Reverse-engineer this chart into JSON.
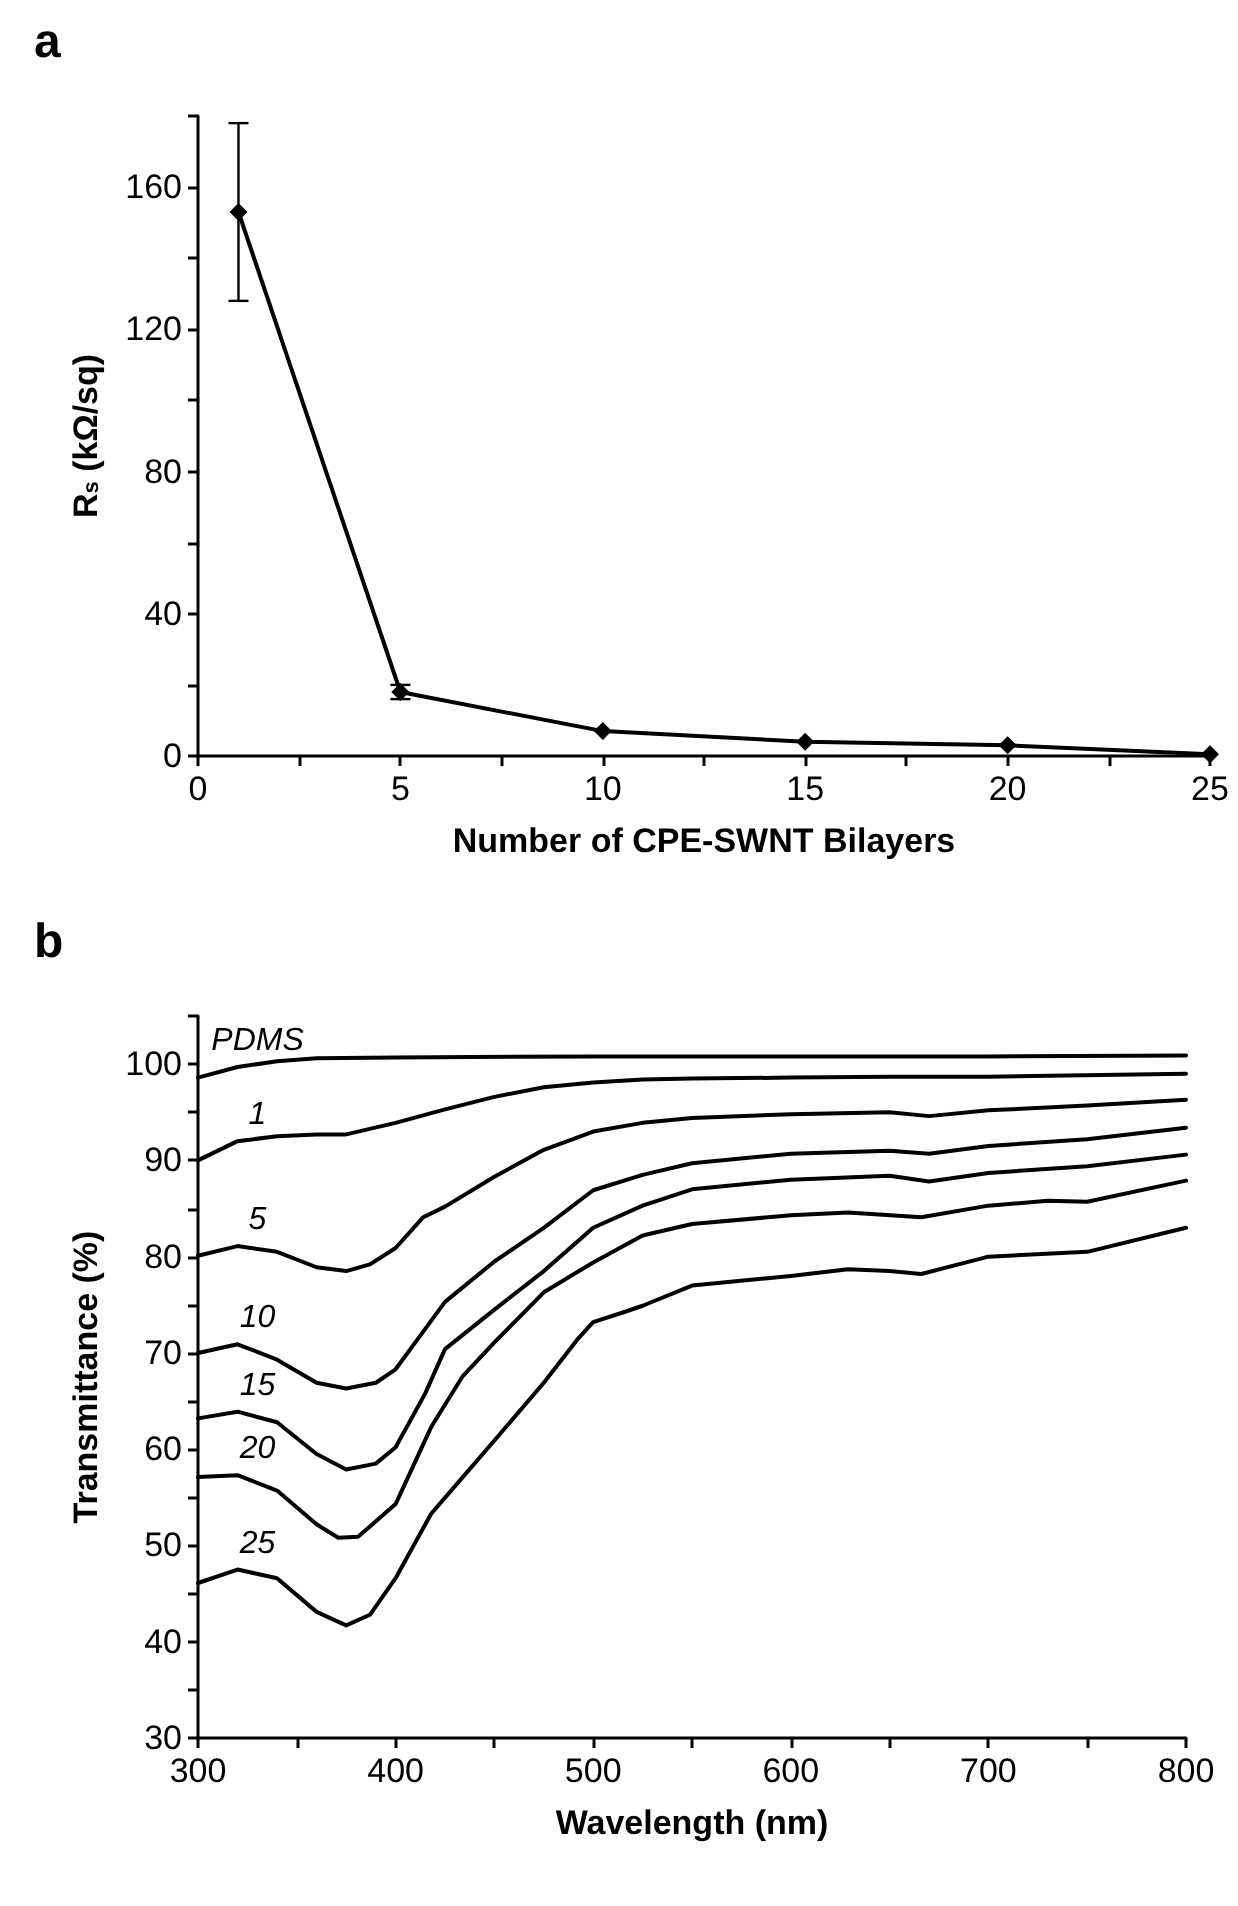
{
  "chart_data": [
    {
      "type": "line",
      "title": "a",
      "xlabel": "Number of CPE-SWNT Bilayers",
      "ylabel": "R$_{s}$ (kΩ/sq)",
      "x": [
        1,
        5,
        10,
        15,
        20,
        25
      ],
      "series": [
        {
          "color": "#000000",
          "values": [
            153,
            18,
            7,
            4,
            3,
            0.5
          ],
          "errors": [
            25,
            2,
            null,
            null,
            null,
            null
          ]
        }
      ],
      "xlim": [
        0,
        25
      ],
      "xticks": [
        0,
        {
          "value": 2.5,
          "label": null
        },
        5,
        {
          "value": 7.5,
          "label": null
        },
        10,
        {
          "value": 12.5,
          "label": null
        },
        15,
        {
          "value": 17.5,
          "label": null
        },
        20,
        {
          "value": 22.5,
          "label": null
        },
        25
      ],
      "ylim": [
        0,
        180
      ],
      "yticks": [
        0,
        {
          "value": 20,
          "label": null
        },
        40,
        {
          "value": 60,
          "label": null
        },
        80,
        {
          "value": 100,
          "label": null
        },
        120,
        {
          "value": 140,
          "label": null
        },
        160,
        {
          "value": 180,
          "label": null
        }
      ],
      "marker": "diamond",
      "line_style": "solid",
      "grid": false,
      "legend": false
    },
    {
      "type": "line",
      "title": "b",
      "xlabel": "Wavelength (nm)",
      "ylabel": "Transmittance (%)",
      "series": [
        {
          "name": "PDMS",
          "color": "#000000",
          "x": [
            300,
            320,
            340,
            360,
            400,
            500,
            600,
            700,
            800
          ],
          "values": [
            98.6,
            99.7,
            100.3,
            100.6,
            100.7,
            100.8,
            100.8,
            100.8,
            100.9
          ]
        },
        {
          "name": "1",
          "color": "#000000",
          "x": [
            300,
            320,
            340,
            360,
            375,
            400,
            425,
            450,
            475,
            500,
            525,
            550,
            600,
            650,
            700,
            800
          ],
          "values": [
            90.0,
            92.0,
            92.5,
            92.7,
            92.7,
            93.9,
            95.3,
            96.6,
            97.6,
            98.1,
            98.4,
            98.5,
            98.6,
            98.7,
            98.7,
            99.0
          ]
        },
        {
          "name": "5",
          "color": "#000000",
          "x": [
            300,
            320,
            340,
            360,
            375,
            387,
            400,
            414,
            425,
            450,
            475,
            500,
            525,
            550,
            600,
            650,
            670,
            700,
            750,
            800
          ],
          "values": [
            80.1,
            81.1,
            80.5,
            78.9,
            78.5,
            79.2,
            80.9,
            84.1,
            85.2,
            88.3,
            91.1,
            93.0,
            93.9,
            94.4,
            94.8,
            95.0,
            94.6,
            95.2,
            95.7,
            96.3
          ]
        },
        {
          "name": "10",
          "color": "#000000",
          "x": [
            300,
            320,
            340,
            360,
            375,
            390,
            400,
            415,
            425,
            450,
            475,
            500,
            525,
            550,
            600,
            650,
            670,
            700,
            750,
            800
          ],
          "values": [
            70.0,
            70.9,
            69.3,
            66.9,
            66.3,
            66.9,
            68.3,
            72.5,
            75.3,
            79.5,
            83.0,
            86.9,
            88.5,
            89.7,
            90.7,
            91.0,
            90.7,
            91.5,
            92.2,
            93.4
          ]
        },
        {
          "name": "15",
          "color": "#000000",
          "x": [
            300,
            320,
            340,
            360,
            375,
            390,
            400,
            415,
            425,
            450,
            475,
            500,
            525,
            550,
            600,
            650,
            670,
            700,
            750,
            800
          ],
          "values": [
            63.2,
            63.9,
            62.8,
            59.5,
            57.9,
            58.5,
            60.2,
            65.8,
            70.4,
            74.5,
            78.5,
            83.0,
            85.3,
            87.0,
            88.0,
            88.4,
            87.8,
            88.7,
            89.4,
            90.6
          ]
        },
        {
          "name": "20",
          "color": "#000000",
          "x": [
            300,
            320,
            340,
            360,
            371,
            381,
            400,
            418,
            434,
            450,
            475,
            500,
            525,
            550,
            600,
            629,
            666,
            700,
            730,
            750,
            800
          ],
          "values": [
            57.1,
            57.3,
            55.7,
            52.2,
            50.8,
            50.9,
            54.3,
            62.3,
            67.6,
            71.1,
            76.3,
            79.4,
            82.2,
            83.4,
            84.3,
            84.6,
            84.1,
            85.3,
            85.8,
            85.7,
            87.9
          ]
        },
        {
          "name": "25",
          "color": "#000000",
          "x": [
            300,
            320,
            340,
            360,
            375,
            387,
            400,
            418,
            434,
            450,
            475,
            492,
            500,
            515,
            525,
            550,
            600,
            629,
            650,
            666,
            700,
            750,
            800
          ],
          "values": [
            46.1,
            47.5,
            46.6,
            43.1,
            41.7,
            42.8,
            46.6,
            53.3,
            57.1,
            60.9,
            66.9,
            71.4,
            73.2,
            74.2,
            74.9,
            77.0,
            78.0,
            78.7,
            78.5,
            78.2,
            80.0,
            80.5,
            83.0
          ]
        }
      ],
      "xlim": [
        300,
        800
      ],
      "xticks": [
        300,
        {
          "value": 350,
          "label": null
        },
        400,
        {
          "value": 450,
          "label": null
        },
        500,
        {
          "value": 550,
          "label": null
        },
        600,
        {
          "value": 650,
          "label": null
        },
        700,
        {
          "value": 750,
          "label": null
        },
        800
      ],
      "ylim": [
        30,
        105
      ],
      "yticks": [
        30,
        {
          "value": 35,
          "label": null
        },
        40,
        {
          "value": 45,
          "label": null
        },
        50,
        {
          "value": 55,
          "label": null
        },
        60,
        {
          "value": 65,
          "label": null
        },
        70,
        {
          "value": 75,
          "label": null
        },
        80,
        {
          "value": 85,
          "label": null
        },
        90,
        {
          "value": 95,
          "label": null
        },
        100,
        {
          "value": 105,
          "label": null
        }
      ],
      "marker": "none",
      "line_style": "solid",
      "grid": false,
      "legend": false
    }
  ]
}
